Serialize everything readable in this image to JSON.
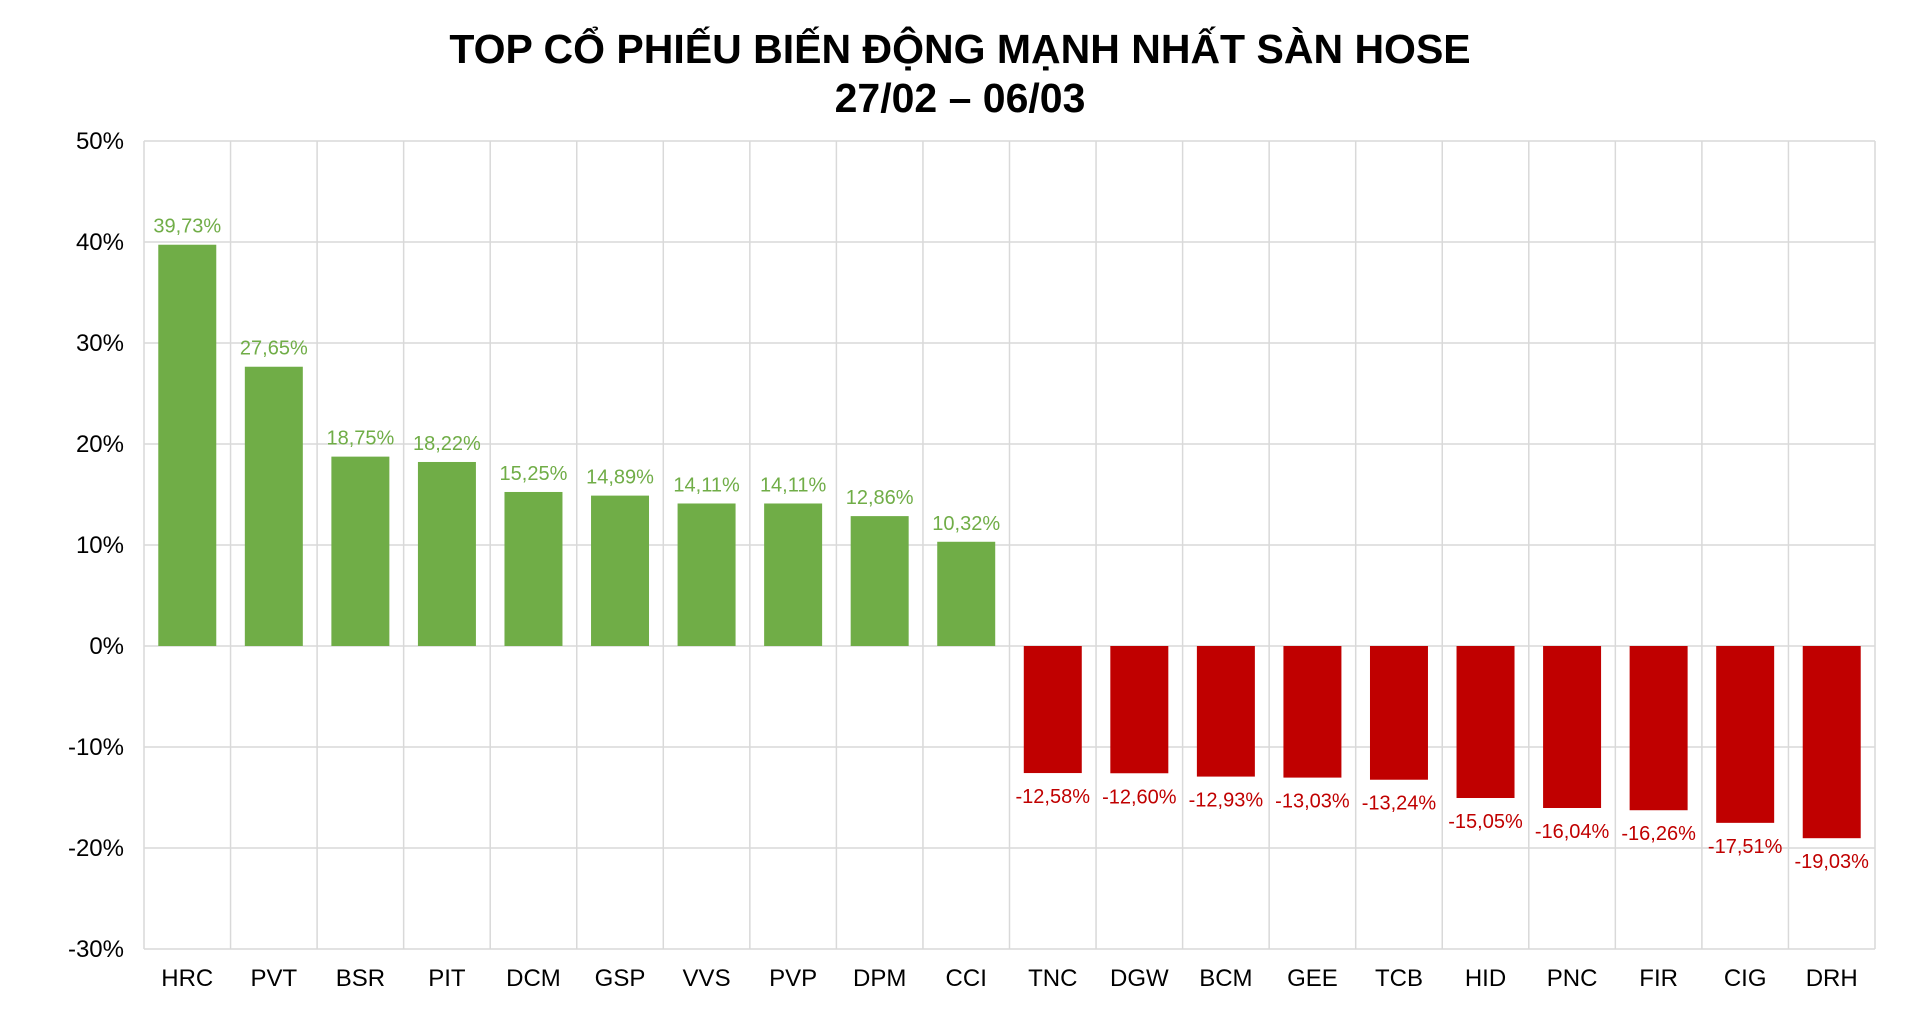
{
  "chart_data": {
    "type": "bar",
    "title": "TOP CỔ PHIẾU BIẾN ĐỘNG MẠNH NHẤT SÀN HOSE",
    "subtitle": "27/02 – 06/03",
    "xlabel": "",
    "ylabel": "",
    "ylim": [
      -30,
      50
    ],
    "yticks": [
      50,
      40,
      30,
      20,
      10,
      0,
      -10,
      -20,
      -30
    ],
    "ytick_labels": [
      "50%",
      "40%",
      "30%",
      "20%",
      "10%",
      "0%",
      "-10%",
      "-20%",
      "-30%"
    ],
    "grid": true,
    "legend": "none",
    "categories": [
      "HRC",
      "PVT",
      "BSR",
      "PIT",
      "DCM",
      "GSP",
      "VVS",
      "PVP",
      "DPM",
      "CCI",
      "TNC",
      "DGW",
      "BCM",
      "GEE",
      "TCB",
      "HID",
      "PNC",
      "FIR",
      "CIG",
      "DRH"
    ],
    "values": [
      39.73,
      27.65,
      18.75,
      18.22,
      15.25,
      14.89,
      14.11,
      14.11,
      12.86,
      10.32,
      -12.58,
      -12.6,
      -12.93,
      -13.03,
      -13.24,
      -15.05,
      -16.04,
      -16.26,
      -17.51,
      -19.03
    ],
    "data_labels": [
      "39,73%",
      "27,65%",
      "18,75%",
      "18,22%",
      "15,25%",
      "14,89%",
      "14,11%",
      "14,11%",
      "12,86%",
      "10,32%",
      "-12,58%",
      "-12,60%",
      "-12,93%",
      "-13,03%",
      "-13,24%",
      "-15,05%",
      "-16,04%",
      "-16,26%",
      "-17,51%",
      "-19,03%"
    ],
    "colors": {
      "positive": "#70AD47",
      "negative": "#C00000",
      "grid": "#D9D9D9"
    }
  }
}
